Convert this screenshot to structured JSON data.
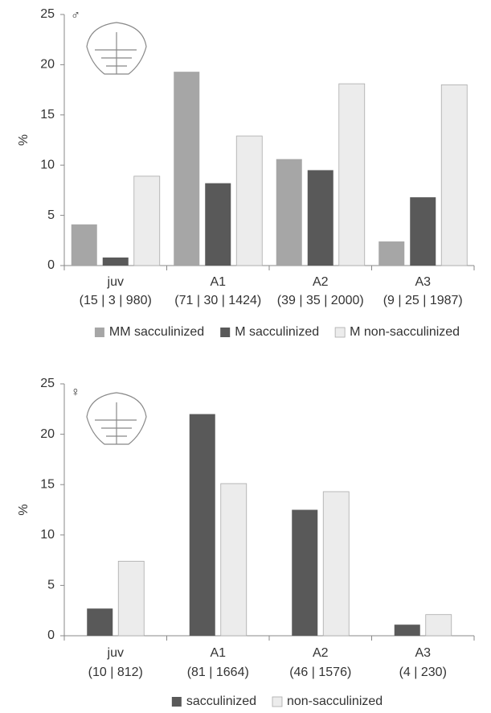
{
  "chart_data": [
    {
      "type": "bar",
      "annotation": "♂",
      "y_label": "%",
      "categories": [
        "juv",
        "A1",
        "A2",
        "A3"
      ],
      "category_sublabels": [
        "(15 | 3 | 980)",
        "(71 | 30 | 1424)",
        "(39 | 35 | 2000)",
        "(9 | 25 | 1987)"
      ],
      "series": [
        {
          "name": "MM sacculinized",
          "color": "#a6a6a6",
          "values": [
            4.1,
            19.3,
            10.6,
            2.4
          ]
        },
        {
          "name": "M sacculinized",
          "color": "#595959",
          "values": [
            0.8,
            8.2,
            9.5,
            6.8
          ]
        },
        {
          "name": "M non-sacculinized",
          "color": "#ececec",
          "values": [
            8.9,
            12.9,
            18.1,
            18.0
          ]
        }
      ],
      "ylim": [
        0,
        25
      ],
      "yticks": [
        0,
        5,
        10,
        15,
        20,
        25
      ],
      "grid": false,
      "legend": "bottom"
    },
    {
      "type": "bar",
      "annotation": "♀",
      "y_label": "%",
      "categories": [
        "juv",
        "A1",
        "A2",
        "A3"
      ],
      "category_sublabels": [
        "(10 | 812)",
        "(81 | 1664)",
        "(46 | 1576)",
        "(4 | 230)"
      ],
      "series": [
        {
          "name": "sacculinized",
          "color": "#595959",
          "values": [
            2.7,
            22.0,
            12.5,
            1.1
          ]
        },
        {
          "name": "non-sacculinized",
          "color": "#ececec",
          "values": [
            7.4,
            15.1,
            14.3,
            2.1
          ]
        }
      ],
      "ylim": [
        0,
        25
      ],
      "yticks": [
        0,
        5,
        10,
        15,
        20,
        25
      ],
      "grid": false,
      "legend": "bottom"
    }
  ]
}
